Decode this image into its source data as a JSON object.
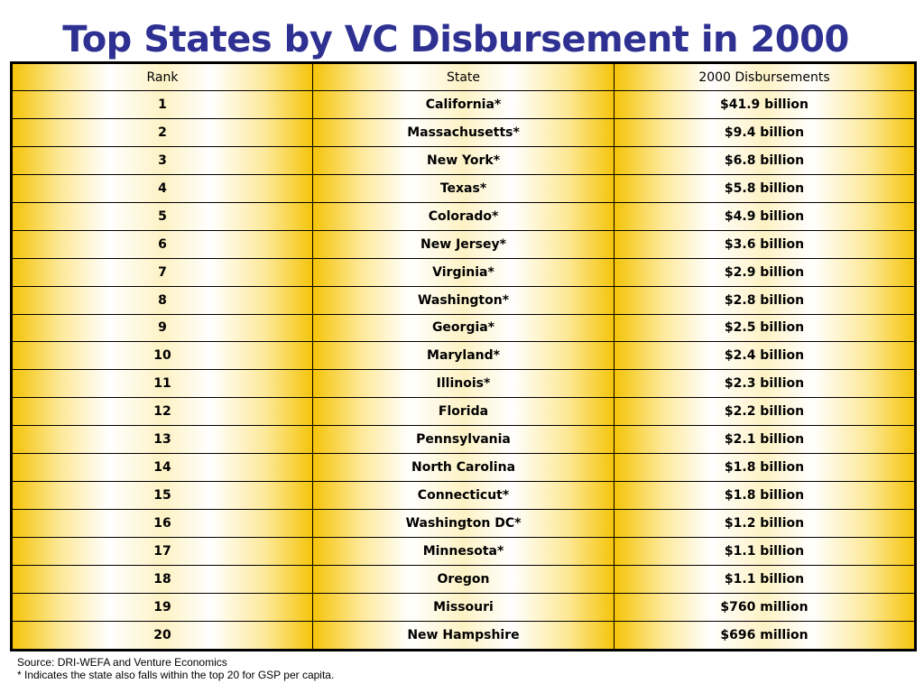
{
  "title": "Top States by VC Disbursement in 2000",
  "table": {
    "headers": [
      "Rank",
      "State",
      "2000 Disbursements"
    ],
    "rows": [
      [
        "1",
        "California*",
        "$41.9 billion"
      ],
      [
        "2",
        "Massachusetts*",
        "$9.4 billion"
      ],
      [
        "3",
        "New York*",
        "$6.8 billion"
      ],
      [
        "4",
        "Texas*",
        "$5.8 billion"
      ],
      [
        "5",
        "Colorado*",
        "$4.9 billion"
      ],
      [
        "6",
        "New Jersey*",
        "$3.6 billion"
      ],
      [
        "7",
        "Virginia*",
        "$2.9 billion"
      ],
      [
        "8",
        "Washington*",
        "$2.8 billion"
      ],
      [
        "9",
        "Georgia*",
        "$2.5 billion"
      ],
      [
        "10",
        "Maryland*",
        "$2.4 billion"
      ],
      [
        "11",
        "Illinois*",
        "$2.3 billion"
      ],
      [
        "12",
        "Florida",
        "$2.2 billion"
      ],
      [
        "13",
        "Pennsylvania",
        "$2.1 billion"
      ],
      [
        "14",
        "North Carolina",
        "$1.8 billion"
      ],
      [
        "15",
        "Connecticut*",
        "$1.8 billion"
      ],
      [
        "16",
        "Washington DC*",
        "$1.2 billion"
      ],
      [
        "17",
        "Minnesota*",
        "$1.1 billion"
      ],
      [
        "18",
        "Oregon",
        "$1.1 billion"
      ],
      [
        "19",
        "Missouri",
        "$760 million"
      ],
      [
        "20",
        "New Hampshire",
        "$696 million"
      ]
    ]
  },
  "footnotes": {
    "source": "Source: DRI-WEFA and Venture Economics",
    "note": "* Indicates the state also falls within the top 20 for GSP per capita."
  },
  "colors": {
    "title": "#2e3192",
    "gradient_gold": "#f5c40a",
    "border": "#000000"
  }
}
